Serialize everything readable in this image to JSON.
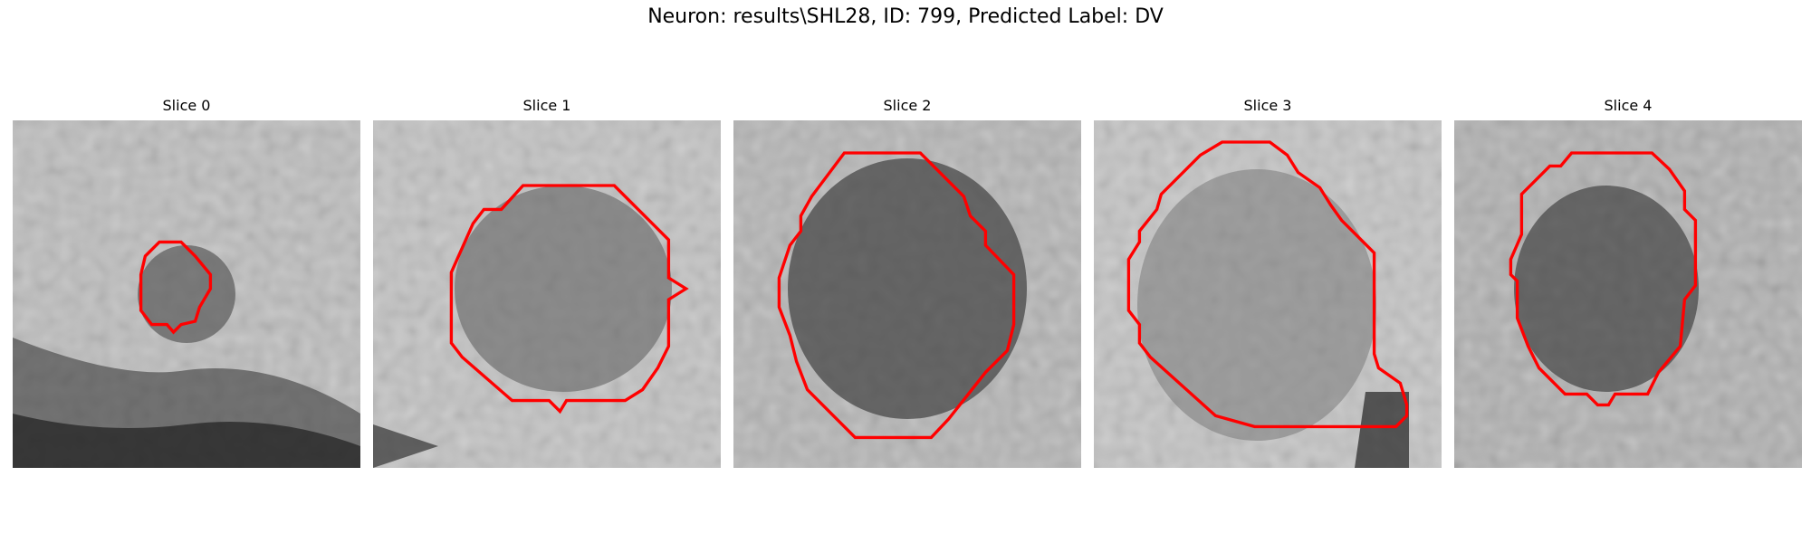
{
  "figure": {
    "title": "Neuron: results\\SHL28, ID: 799, Predicted Label: DV"
  },
  "colors": {
    "contour": "#ff0000",
    "background": "#ffffff"
  },
  "slices": [
    {
      "title": "Slice 0"
    },
    {
      "title": "Slice 1"
    },
    {
      "title": "Slice 2"
    },
    {
      "title": "Slice 3"
    },
    {
      "title": "Slice 4"
    }
  ]
}
